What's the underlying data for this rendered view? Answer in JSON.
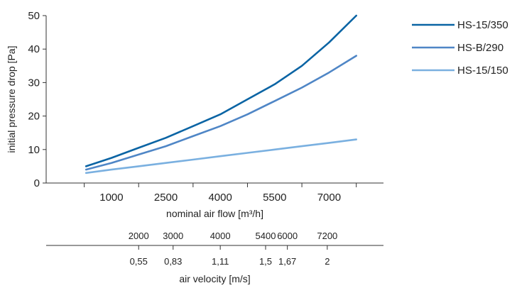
{
  "chart_data": {
    "type": "line",
    "ylabel": "initial pressure drop [Pa]",
    "xlabel": "nominal air flow [m³/h]",
    "xlim": [
      -800,
      8500
    ],
    "ylim": [
      0,
      50
    ],
    "yticks": [
      0,
      10,
      20,
      30,
      40,
      50
    ],
    "xticks": [
      1000,
      2500,
      4000,
      5500,
      7000
    ],
    "xtick_labels": [
      "1000",
      "2500",
      "4000",
      "5500",
      "7000"
    ],
    "xminor": [
      250,
      1750,
      3250,
      4750,
      6250,
      7750
    ],
    "series": [
      {
        "name": "HS-15/350",
        "color": "#0a64a4",
        "x": [
          300,
          1000,
          1750,
          2500,
          3250,
          4000,
          4750,
          5500,
          6250,
          7000,
          7750
        ],
        "y": [
          5,
          7.5,
          10.5,
          13.5,
          17,
          20.5,
          25,
          29.5,
          35,
          42,
          50
        ]
      },
      {
        "name": "HS-B/290",
        "color": "#4f86c6",
        "x": [
          300,
          1000,
          1750,
          2500,
          3250,
          4000,
          4750,
          5500,
          6250,
          7000,
          7750
        ],
        "y": [
          4,
          6,
          8.5,
          11,
          14,
          17,
          20.5,
          24.5,
          28.5,
          33,
          38
        ]
      },
      {
        "name": "HS-15/150",
        "color": "#7ab0e0",
        "x": [
          300,
          1000,
          1750,
          2500,
          3250,
          4000,
          4750,
          5500,
          6250,
          7000,
          7750
        ],
        "y": [
          3,
          4,
          5,
          6,
          7,
          8,
          9,
          10,
          11,
          12,
          13
        ]
      }
    ],
    "legend_position": "top-right",
    "secondary_axis": {
      "upper_values": [
        "2000",
        "3000",
        "4000",
        "5400",
        "6000",
        "7200"
      ],
      "upper_at_flow": [
        1750,
        2700,
        4000,
        5250,
        5850,
        6950
      ],
      "lower_values": [
        "0,55",
        "0,83",
        "1,11",
        "1,5",
        "1,67",
        "2"
      ],
      "lower_at_flow": [
        1750,
        2700,
        4000,
        5250,
        5850,
        6950
      ],
      "ticks_at_flow": [
        1750,
        2700,
        4000,
        5250,
        5850,
        6950
      ],
      "label": "air velocity [m/s]"
    }
  }
}
